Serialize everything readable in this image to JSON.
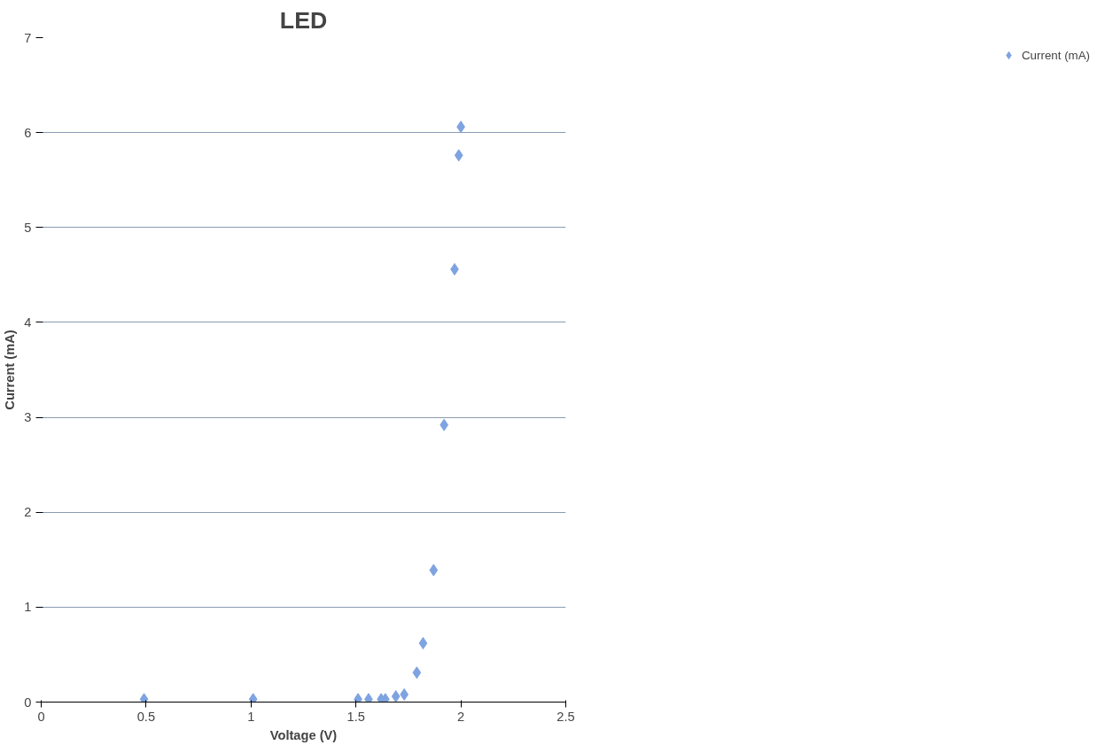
{
  "chart_data": {
    "type": "scatter",
    "title": "LED",
    "xlabel": "Voltage (V)",
    "ylabel": "Current (mA)",
    "x": [
      0.49,
      1.01,
      1.51,
      1.56,
      1.62,
      1.64,
      1.69,
      1.73,
      1.79,
      1.82,
      1.87,
      1.92,
      1.97,
      1.99,
      2.0
    ],
    "series": [
      {
        "name": "Current (mA)",
        "color": "#7ea3e0",
        "values": [
          0.03,
          0.03,
          0.03,
          0.03,
          0.03,
          0.03,
          0.06,
          0.08,
          0.31,
          0.62,
          1.39,
          2.92,
          4.56,
          5.76,
          6.06
        ]
      }
    ],
    "xlim": [
      0,
      2.5
    ],
    "ylim": [
      0,
      7
    ],
    "xticks": [
      0,
      0.5,
      1,
      1.5,
      2,
      2.5
    ],
    "yticks": [
      0,
      1,
      2,
      3,
      4,
      5,
      6,
      7
    ],
    "grid": "y",
    "legend": "right",
    "marker": "diamond"
  }
}
